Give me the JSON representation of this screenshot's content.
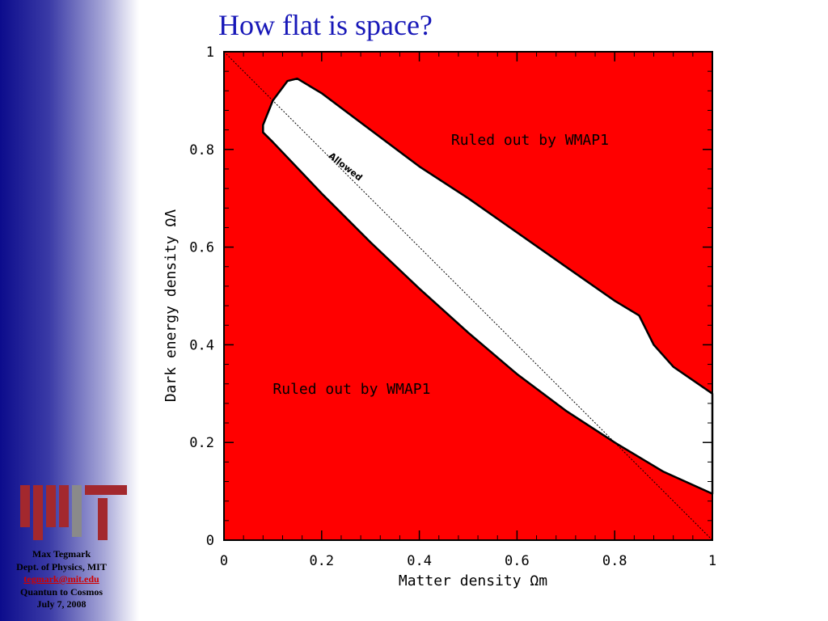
{
  "slide": {
    "title": "How flat is space?",
    "accent_color": "#1818b8"
  },
  "sidebar": {
    "logo_icon": "mit-logo-icon",
    "author": "Max Tegmark",
    "affiliation": "Dept. of Physics, MIT",
    "email": "tegmark@mit.edu",
    "talk": "Quantun to Cosmos",
    "date": "July 7, 2008"
  },
  "chart_data": {
    "type": "area",
    "xlabel": "Matter density Ωm",
    "ylabel": "Dark energy density ΩΛ",
    "xlim": [
      0,
      1
    ],
    "ylim": [
      0,
      1
    ],
    "xticks": [
      "0",
      "0.2",
      "0.4",
      "0.6",
      "0.8",
      "1"
    ],
    "yticks": [
      "0",
      "0.2",
      "0.4",
      "0.6",
      "0.8",
      "1"
    ],
    "background_color": "#ff0000",
    "allowed_color": "#ffffff",
    "allowed_region_upper": [
      [
        0.08,
        0.85
      ],
      [
        0.1,
        0.9
      ],
      [
        0.13,
        0.94
      ],
      [
        0.15,
        0.945
      ],
      [
        0.2,
        0.915
      ],
      [
        0.3,
        0.84
      ],
      [
        0.4,
        0.765
      ],
      [
        0.5,
        0.7
      ],
      [
        0.6,
        0.63
      ],
      [
        0.7,
        0.56
      ],
      [
        0.8,
        0.49
      ],
      [
        0.85,
        0.46
      ],
      [
        0.88,
        0.4
      ],
      [
        0.92,
        0.355
      ],
      [
        1.0,
        0.3
      ]
    ],
    "allowed_region_lower": [
      [
        0.08,
        0.835
      ],
      [
        0.1,
        0.815
      ],
      [
        0.2,
        0.71
      ],
      [
        0.3,
        0.61
      ],
      [
        0.4,
        0.515
      ],
      [
        0.5,
        0.425
      ],
      [
        0.6,
        0.34
      ],
      [
        0.7,
        0.265
      ],
      [
        0.8,
        0.2
      ],
      [
        0.9,
        0.14
      ],
      [
        1.0,
        0.095
      ]
    ],
    "flat_line": [
      [
        0,
        1
      ],
      [
        1,
        0
      ]
    ],
    "annotations": [
      {
        "text": "Ruled out by WMAP1",
        "x": 0.465,
        "y": 0.81
      },
      {
        "text": "Ruled out by WMAP1",
        "x": 0.1,
        "y": 0.3
      },
      {
        "text": "Allowed",
        "x": 0.245,
        "y": 0.76
      }
    ]
  }
}
